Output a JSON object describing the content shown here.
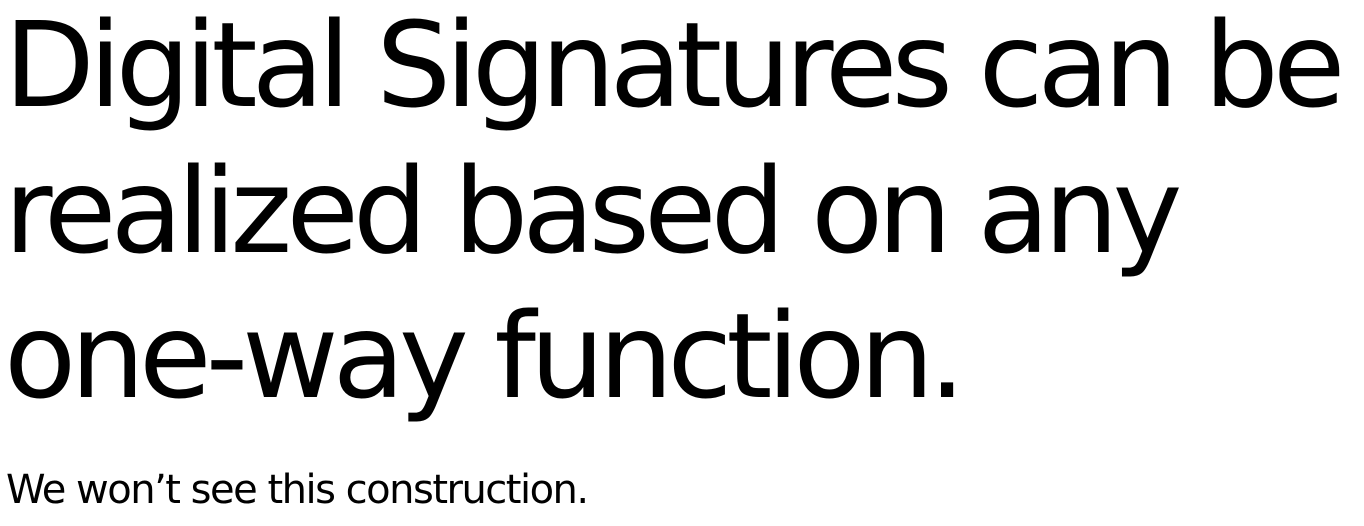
{
  "slide": {
    "title_lines": [
      "Digital Signatures can be",
      "realized based on any",
      "one-way function."
    ],
    "subtitle": "We won’t see this construction."
  },
  "colors": {
    "background": "#ffffff",
    "text": "#000000"
  }
}
